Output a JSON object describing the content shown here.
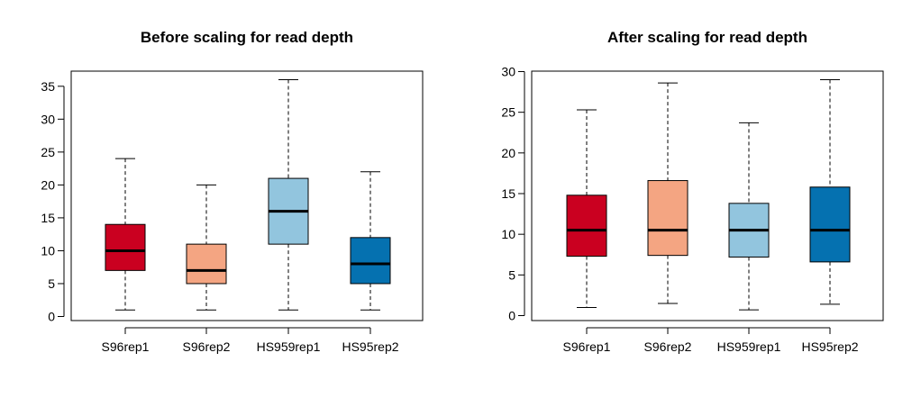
{
  "chart_data": [
    {
      "type": "boxplot",
      "title": "Before scaling for read depth",
      "xlabel": "",
      "ylabel": "",
      "categories": [
        "S96rep1",
        "S96rep2",
        "HS959rep1",
        "HS95rep2"
      ],
      "colors": [
        "#ca0020",
        "#f4a582",
        "#92c5de",
        "#0571b0"
      ],
      "ylim": [
        0,
        36
      ],
      "yticks": [
        0,
        5,
        10,
        15,
        20,
        25,
        30,
        35
      ],
      "boxes": [
        {
          "name": "S96rep1",
          "whisker_low": 1,
          "q1": 7,
          "median": 10,
          "q3": 14,
          "whisker_high": 24
        },
        {
          "name": "S96rep2",
          "whisker_low": 1,
          "q1": 5,
          "median": 7,
          "q3": 11,
          "whisker_high": 20
        },
        {
          "name": "HS959rep1",
          "whisker_low": 1,
          "q1": 11,
          "median": 16,
          "q3": 21,
          "whisker_high": 36
        },
        {
          "name": "HS95rep2",
          "whisker_low": 1,
          "q1": 5,
          "median": 8,
          "q3": 12,
          "whisker_high": 22
        }
      ],
      "grid": false
    },
    {
      "type": "boxplot",
      "title": "After scaling for read depth",
      "xlabel": "",
      "ylabel": "",
      "categories": [
        "S96rep1",
        "S96rep2",
        "HS959rep1",
        "HS95rep2"
      ],
      "colors": [
        "#ca0020",
        "#f4a582",
        "#92c5de",
        "#0571b0"
      ],
      "ylim": [
        0,
        30
      ],
      "yticks": [
        0,
        5,
        10,
        15,
        20,
        25,
        30
      ],
      "boxes": [
        {
          "name": "S96rep1",
          "whisker_low": 1.0,
          "q1": 7.3,
          "median": 10.5,
          "q3": 14.8,
          "whisker_high": 25.3
        },
        {
          "name": "S96rep2",
          "whisker_low": 1.5,
          "q1": 7.4,
          "median": 10.5,
          "q3": 16.6,
          "whisker_high": 28.6
        },
        {
          "name": "HS959rep1",
          "whisker_low": 0.7,
          "q1": 7.2,
          "median": 10.5,
          "q3": 13.8,
          "whisker_high": 23.7
        },
        {
          "name": "HS95rep2",
          "whisker_low": 1.4,
          "q1": 6.6,
          "median": 10.5,
          "q3": 15.8,
          "whisker_high": 29.0
        }
      ],
      "grid": false
    }
  ]
}
